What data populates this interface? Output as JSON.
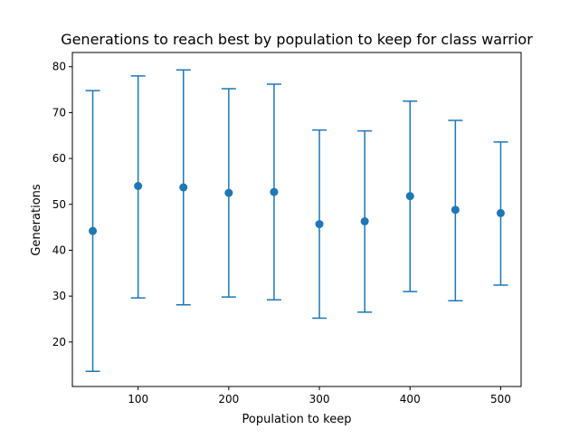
{
  "chart_data": {
    "type": "scatter",
    "title": "Generations to reach best by population to keep for class warrior",
    "xlabel": "Population to keep",
    "ylabel": "Generations",
    "xlim": [
      27.5,
      522.5
    ],
    "ylim": [
      10.3,
      83.1
    ],
    "xticks": [
      "100",
      "200",
      "300",
      "400",
      "500"
    ],
    "yticks": [
      "20",
      "30",
      "40",
      "50",
      "60",
      "70",
      "80"
    ],
    "color": "#1f77b4",
    "series": [
      {
        "x": [
          50,
          100,
          150,
          200,
          250,
          300,
          350,
          400,
          450,
          500
        ],
        "y": [
          44.2,
          54.0,
          53.7,
          52.5,
          52.7,
          45.7,
          46.3,
          51.8,
          48.8,
          48.1
        ],
        "yerr_low": [
          13.6,
          29.6,
          28.1,
          29.8,
          29.2,
          25.2,
          26.5,
          31.0,
          29.0,
          32.4
        ],
        "yerr_high": [
          74.8,
          78.0,
          79.3,
          75.2,
          76.2,
          66.2,
          66.0,
          72.5,
          68.3,
          63.6
        ]
      }
    ]
  }
}
